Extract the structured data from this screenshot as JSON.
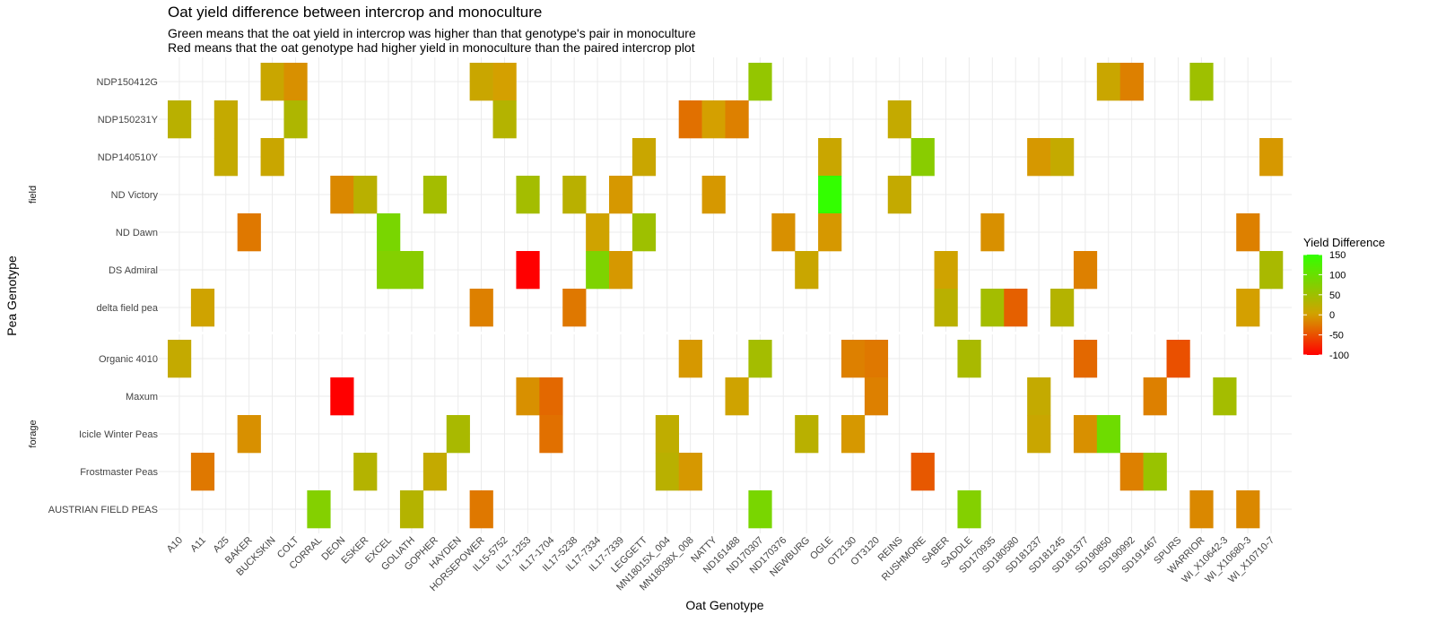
{
  "chart_data": {
    "type": "heatmap",
    "title": "Oat yield difference between intercrop and monoculture",
    "subtitle": [
      "Green means that the oat yield in intercrop was higher than that genotype's pair in monoculture",
      "Red means that the oat genotype had higher yield in monoculture than the paired intercrop plot"
    ],
    "xlabel": "Oat Genotype",
    "ylabel": "Pea Genotype",
    "legend": {
      "title": "Yield Difference",
      "position": "right",
      "ticks": [
        150,
        100,
        50,
        0,
        -50,
        -100
      ],
      "range": [
        -100,
        150
      ],
      "colors": {
        "low": "#ff0000",
        "mid": "#d4a000",
        "high": "#33ff00"
      }
    },
    "grid": true,
    "x_categories": [
      "A10",
      "A11",
      "A25",
      "BAKER",
      "BUCKSKIN",
      "COLT",
      "CORRAL",
      "DEON",
      "ESKER",
      "EXCEL",
      "GOLIATH",
      "GOPHER",
      "HAYDEN",
      "HORSEPOWER",
      "IL15-5752",
      "IL17-1253",
      "IL17-1704",
      "IL17-5238",
      "IL17-7334",
      "IL17-7339",
      "LEGGETT",
      "MN18015X_004",
      "MN18038X_008",
      "NATTY",
      "ND161488",
      "ND170307",
      "ND170376",
      "NEWBURG",
      "OGLE",
      "OT2130",
      "OT3120",
      "REINS",
      "RUSHMORE",
      "SABER",
      "SADDLE",
      "SD170935",
      "SD180580",
      "SD181237",
      "SD181245",
      "SD181377",
      "SD190850",
      "SD190992",
      "SD191467",
      "SPURS",
      "WARRIOR",
      "WI_X10642-3",
      "WI_X10680-3",
      "WI_X10710-7"
    ],
    "facets": [
      {
        "name": "field",
        "rows": [
          "NDP150412G",
          "NDP150231Y",
          "NDP140510Y",
          "ND Victory",
          "ND Dawn",
          "DS Admiral",
          "delta field pea"
        ],
        "cells": [
          [
            "NDP150412G",
            "BUCKSKIN",
            10
          ],
          [
            "NDP150412G",
            "COLT",
            -10
          ],
          [
            "NDP150412G",
            "HORSEPOWER",
            10
          ],
          [
            "NDP150412G",
            "IL15-5752",
            0
          ],
          [
            "NDP150412G",
            "ND170307",
            60
          ],
          [
            "NDP150412G",
            "SD190850",
            10
          ],
          [
            "NDP150412G",
            "SD190992",
            -20
          ],
          [
            "NDP150412G",
            "WARRIOR",
            50
          ],
          [
            "NDP150231Y",
            "A10",
            25
          ],
          [
            "NDP150231Y",
            "A25",
            15
          ],
          [
            "NDP150231Y",
            "COLT",
            35
          ],
          [
            "NDP150231Y",
            "IL15-5752",
            30
          ],
          [
            "NDP150231Y",
            "MN18038X_008",
            -30
          ],
          [
            "NDP150231Y",
            "NATTY",
            0
          ],
          [
            "NDP150231Y",
            "ND161488",
            -20
          ],
          [
            "NDP150231Y",
            "REINS",
            15
          ],
          [
            "NDP140510Y",
            "A25",
            15
          ],
          [
            "NDP140510Y",
            "BUCKSKIN",
            10
          ],
          [
            "NDP140510Y",
            "LEGGETT",
            10
          ],
          [
            "NDP140510Y",
            "OGLE",
            10
          ],
          [
            "NDP140510Y",
            "RUSHMORE",
            70
          ],
          [
            "NDP140510Y",
            "SD181237",
            -5
          ],
          [
            "NDP140510Y",
            "SD181245",
            15
          ],
          [
            "NDP140510Y",
            "WI_X10710-7",
            -5
          ],
          [
            "ND Victory",
            "DEON",
            -15
          ],
          [
            "ND Victory",
            "ESKER",
            25
          ],
          [
            "ND Victory",
            "GOPHER",
            45
          ],
          [
            "ND Victory",
            "IL17-1253",
            45
          ],
          [
            "ND Victory",
            "IL17-5238",
            25
          ],
          [
            "ND Victory",
            "IL17-7339",
            -5
          ],
          [
            "ND Victory",
            "NATTY",
            -5
          ],
          [
            "ND Victory",
            "OGLE",
            150
          ],
          [
            "ND Victory",
            "REINS",
            15
          ],
          [
            "ND Dawn",
            "BAKER",
            -25
          ],
          [
            "ND Dawn",
            "EXCEL",
            85
          ],
          [
            "ND Dawn",
            "IL17-7334",
            5
          ],
          [
            "ND Dawn",
            "LEGGETT",
            50
          ],
          [
            "ND Dawn",
            "ND170376",
            -10
          ],
          [
            "ND Dawn",
            "OGLE",
            -5
          ],
          [
            "ND Dawn",
            "SD170935",
            -10
          ],
          [
            "ND Dawn",
            "WI_X10680-3",
            -20
          ],
          [
            "DS Admiral",
            "EXCEL",
            75
          ],
          [
            "DS Admiral",
            "GOLIATH",
            70
          ],
          [
            "DS Admiral",
            "IL17-1253",
            -100
          ],
          [
            "DS Admiral",
            "IL17-7334",
            80
          ],
          [
            "DS Admiral",
            "IL17-7339",
            -5
          ],
          [
            "DS Admiral",
            "NEWBURG",
            10
          ],
          [
            "DS Admiral",
            "SABER",
            5
          ],
          [
            "DS Admiral",
            "SD181377",
            -20
          ],
          [
            "DS Admiral",
            "WI_X10710-7",
            40
          ],
          [
            "delta field pea",
            "A11",
            5
          ],
          [
            "delta field pea",
            "HORSEPOWER",
            -20
          ],
          [
            "delta field pea",
            "IL17-5238",
            -25
          ],
          [
            "delta field pea",
            "SABER",
            25
          ],
          [
            "delta field pea",
            "SD170935",
            45
          ],
          [
            "delta field pea",
            "SD180580",
            -40
          ],
          [
            "delta field pea",
            "SD181245",
            30
          ],
          [
            "delta field pea",
            "WI_X10680-3",
            0
          ]
        ]
      },
      {
        "name": "forage",
        "rows": [
          "Organic 4010",
          "Maxum",
          "Icicle Winter Peas",
          "Frostmaster Peas",
          "AUSTRIAN FIELD PEAS"
        ],
        "cells": [
          [
            "Organic 4010",
            "A10",
            15
          ],
          [
            "Organic 4010",
            "MN18038X_008",
            -5
          ],
          [
            "Organic 4010",
            "ND170307",
            45
          ],
          [
            "Organic 4010",
            "OT2130",
            -20
          ],
          [
            "Organic 4010",
            "OT3120",
            -25
          ],
          [
            "Organic 4010",
            "SADDLE",
            40
          ],
          [
            "Organic 4010",
            "SD181377",
            -35
          ],
          [
            "Organic 4010",
            "SPURS",
            -50
          ],
          [
            "Maxum",
            "DEON",
            -110
          ],
          [
            "Maxum",
            "IL17-1253",
            -10
          ],
          [
            "Maxum",
            "IL17-1704",
            -35
          ],
          [
            "Maxum",
            "ND161488",
            5
          ],
          [
            "Maxum",
            "OT3120",
            -20
          ],
          [
            "Maxum",
            "SD181237",
            15
          ],
          [
            "Maxum",
            "SD191467",
            -20
          ],
          [
            "Maxum",
            "WI_X10642-3",
            45
          ],
          [
            "Icicle Winter Peas",
            "BAKER",
            -10
          ],
          [
            "Icicle Winter Peas",
            "HAYDEN",
            40
          ],
          [
            "Icicle Winter Peas",
            "IL17-1704",
            -30
          ],
          [
            "Icicle Winter Peas",
            "MN18015X_004",
            20
          ],
          [
            "Icicle Winter Peas",
            "NEWBURG",
            25
          ],
          [
            "Icicle Winter Peas",
            "OT2130",
            -5
          ],
          [
            "Icicle Winter Peas",
            "SD181237",
            10
          ],
          [
            "Icicle Winter Peas",
            "SD181377",
            -10
          ],
          [
            "Icicle Winter Peas",
            "SD190850",
            95
          ],
          [
            "Frostmaster Peas",
            "A11",
            -25
          ],
          [
            "Frostmaster Peas",
            "ESKER",
            30
          ],
          [
            "Frostmaster Peas",
            "GOPHER",
            15
          ],
          [
            "Frostmaster Peas",
            "MN18015X_004",
            25
          ],
          [
            "Frostmaster Peas",
            "MN18038X_008",
            -5
          ],
          [
            "Frostmaster Peas",
            "RUSHMORE",
            -45
          ],
          [
            "Frostmaster Peas",
            "SD190992",
            -20
          ],
          [
            "Frostmaster Peas",
            "SD191467",
            55
          ],
          [
            "AUSTRIAN FIELD PEAS",
            "CORRAL",
            75
          ],
          [
            "AUSTRIAN FIELD PEAS",
            "GOLIATH",
            30
          ],
          [
            "AUSTRIAN FIELD PEAS",
            "HORSEPOWER",
            -25
          ],
          [
            "AUSTRIAN FIELD PEAS",
            "ND170307",
            85
          ],
          [
            "AUSTRIAN FIELD PEAS",
            "SADDLE",
            75
          ],
          [
            "AUSTRIAN FIELD PEAS",
            "WARRIOR",
            -15
          ],
          [
            "AUSTRIAN FIELD PEAS",
            "WI_X10680-3",
            -15
          ]
        ]
      }
    ]
  }
}
